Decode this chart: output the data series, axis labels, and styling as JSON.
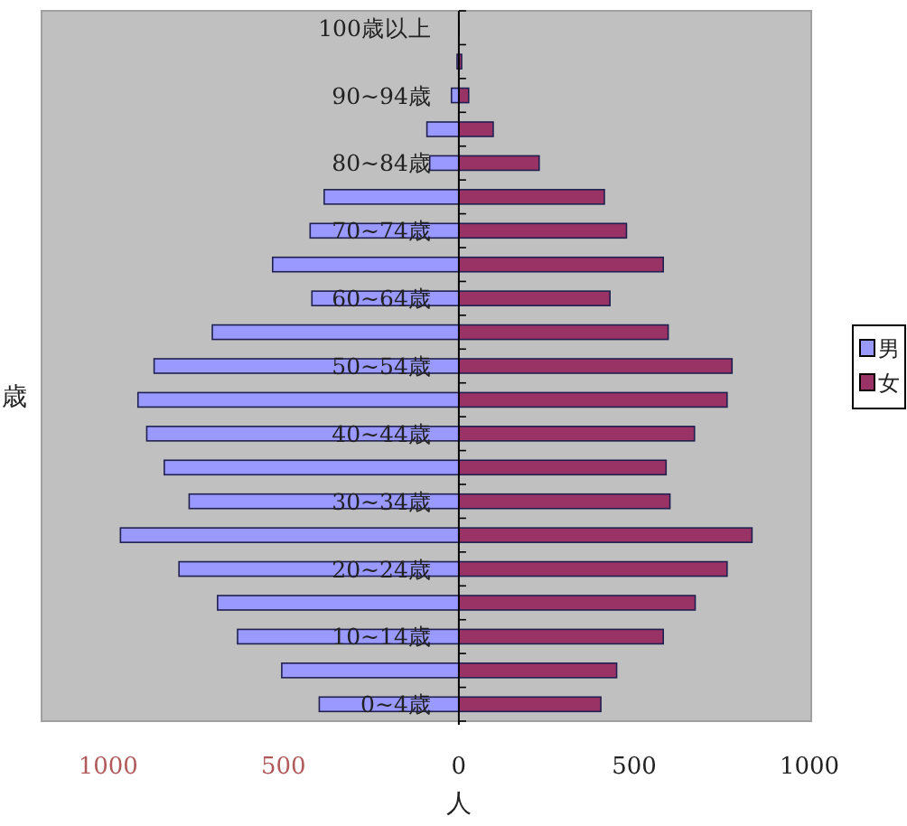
{
  "chart_data": {
    "type": "bar",
    "orientation": "horizontal",
    "stacked": true,
    "categories": [
      "100歳以上",
      null,
      "90~94歳",
      null,
      "80~84歳",
      null,
      "70~74歳",
      null,
      "60~64歳",
      null,
      "50~54歳",
      null,
      "40~44歳",
      null,
      "30~34歳",
      null,
      "20~24歳",
      null,
      "10~14歳",
      null,
      "0~4歳"
    ],
    "series": [
      {
        "name": "男",
        "color": "#9999ff",
        "values": [
          0,
          -5,
          -21,
          -91,
          -83,
          -384,
          -424,
          -531,
          -419,
          -703,
          -869,
          -915,
          -890,
          -840,
          -769,
          -965,
          -798,
          -688,
          -631,
          -505,
          -398
        ]
      },
      {
        "name": "女",
        "color": "#993366",
        "values": [
          0,
          8,
          28,
          98,
          229,
          415,
          478,
          583,
          431,
          597,
          779,
          765,
          672,
          591,
          602,
          836,
          765,
          674,
          583,
          450,
          405
        ]
      }
    ],
    "xlim": [
      -1190,
      1005
    ],
    "xticks": [
      {
        "value": -1000,
        "label": "1000"
      },
      {
        "value": -500,
        "label": "500"
      },
      0,
      500,
      1000
    ],
    "xlabel": "人",
    "ylabel": "歳",
    "legend": "right",
    "grid": false
  }
}
